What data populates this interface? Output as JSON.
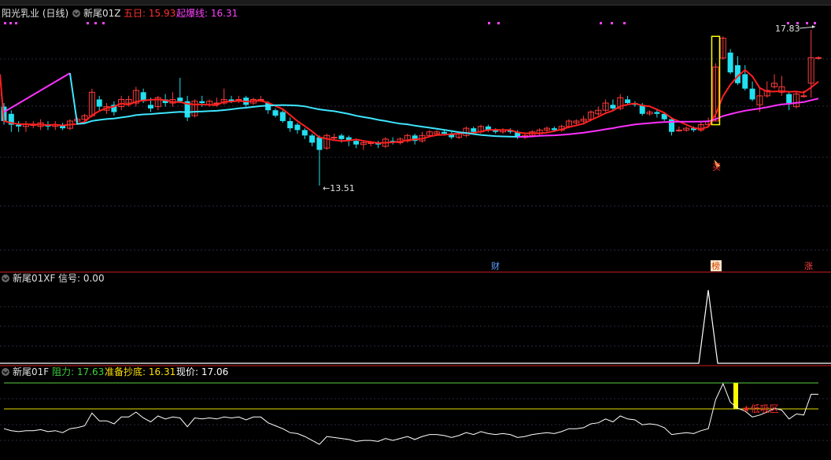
{
  "colors": {
    "background": "#000000",
    "divider": "#8a1414",
    "grid": "#2a2a40",
    "up_candle": "#ff3b3b",
    "down_candle": "#22e0f0",
    "ma_red": "#ff2020",
    "ma_cyan": "#3ee6ff",
    "ma_magenta": "#ff30ff",
    "signal_line": "#ffffff",
    "resist_line": "#5cd040",
    "support_line": "#e8e000",
    "marker_yellow": "#ffff00",
    "label_gray": "#e0e0e0",
    "label_red": "#ff3030",
    "label_magenta": "#ff40ff",
    "label_green": "#40d040",
    "label_yellow": "#ffe000",
    "label_white": "#ffffff"
  },
  "panel_main": {
    "stock_name": "阳光乳业 (日线)",
    "indicator_name": "新尾01Z",
    "line1_label": "五日: 15.93",
    "line2_label": "起爆线: 16.31",
    "high_label": "17.83",
    "low_label": "←13.51",
    "marker_cai": "财",
    "marker_bang": "榜",
    "marker_zhang": "涨",
    "buy_label": "买",
    "icons": [
      "collapse-icon",
      "collapse-icon"
    ]
  },
  "panel_mid": {
    "indicator_name": "新尾01XF",
    "signal_label": "信号: 0.00"
  },
  "panel_bot": {
    "indicator_name": "新尾01F",
    "resist_label": "阻力: 17.63",
    "support_label": "准备抄底: 16.31",
    "price_label": "现价: 17.06",
    "zone_label": "★低吸区"
  },
  "chart_data": {
    "type": "candlestick",
    "title": "阳光乳业 (日线)",
    "price_range": [
      13.2,
      18.2
    ],
    "high": 17.83,
    "low": 13.51,
    "ma5_last": 15.93,
    "trigger_line": 16.31,
    "candles": [
      [
        15.7,
        15.3,
        15.8,
        15.2
      ],
      [
        15.5,
        15.2,
        15.6,
        15.0
      ],
      [
        15.2,
        15.15,
        15.3,
        15.0
      ],
      [
        15.15,
        15.2,
        15.3,
        15.0
      ],
      [
        15.2,
        15.2,
        15.3,
        15.1
      ],
      [
        15.15,
        15.25,
        15.35,
        15.05
      ],
      [
        15.2,
        15.15,
        15.3,
        15.05
      ],
      [
        15.15,
        15.2,
        15.3,
        15.05
      ],
      [
        15.2,
        15.1,
        15.25,
        15.05
      ],
      [
        15.1,
        15.3,
        15.35,
        15.05
      ],
      [
        15.3,
        15.35,
        15.4,
        15.2
      ],
      [
        15.35,
        15.45,
        15.5,
        15.3
      ],
      [
        15.45,
        16.1,
        16.2,
        15.4
      ],
      [
        15.9,
        15.7,
        16.0,
        15.6
      ],
      [
        15.6,
        15.7,
        15.8,
        15.5
      ],
      [
        15.75,
        15.55,
        15.85,
        15.45
      ],
      [
        15.7,
        15.9,
        16.0,
        15.6
      ],
      [
        15.8,
        15.9,
        16.0,
        15.7
      ],
      [
        15.8,
        16.15,
        16.25,
        15.7
      ],
      [
        16.1,
        15.85,
        16.2,
        15.8
      ],
      [
        15.75,
        15.65,
        15.95,
        15.55
      ],
      [
        15.7,
        15.95,
        16.0,
        15.6
      ],
      [
        15.9,
        15.8,
        16.05,
        15.7
      ],
      [
        15.8,
        15.9,
        16.1,
        15.7
      ],
      [
        15.95,
        15.85,
        16.5,
        15.8
      ],
      [
        15.85,
        15.4,
        16.0,
        15.3
      ],
      [
        15.45,
        15.85,
        15.9,
        15.4
      ],
      [
        15.85,
        15.8,
        16.0,
        15.7
      ],
      [
        15.75,
        15.85,
        15.9,
        15.7
      ],
      [
        15.8,
        15.8,
        15.95,
        15.7
      ],
      [
        15.8,
        15.9,
        16.2,
        15.75
      ],
      [
        15.9,
        15.85,
        16.0,
        15.8
      ],
      [
        15.9,
        15.9,
        16.0,
        15.8
      ],
      [
        15.95,
        15.75,
        16.0,
        15.7
      ],
      [
        15.8,
        15.9,
        15.95,
        15.75
      ],
      [
        15.9,
        15.9,
        16.0,
        15.85
      ],
      [
        15.8,
        15.6,
        15.85,
        15.5
      ],
      [
        15.6,
        15.45,
        15.65,
        15.4
      ],
      [
        15.55,
        15.3,
        15.6,
        15.25
      ],
      [
        15.3,
        15.1,
        15.4,
        15.0
      ],
      [
        15.2,
        15.05,
        15.25,
        14.95
      ],
      [
        15.05,
        14.9,
        15.1,
        14.8
      ],
      [
        14.9,
        14.7,
        14.95,
        14.6
      ],
      [
        14.85,
        14.5,
        14.9,
        13.51
      ],
      [
        14.55,
        14.9,
        14.95,
        14.5
      ],
      [
        14.85,
        14.85,
        14.95,
        14.75
      ],
      [
        14.9,
        14.8,
        14.95,
        14.7
      ],
      [
        14.85,
        14.75,
        14.9,
        14.6
      ],
      [
        14.75,
        14.65,
        14.8,
        14.55
      ],
      [
        14.65,
        14.7,
        14.75,
        14.5
      ],
      [
        14.7,
        14.7,
        14.75,
        14.6
      ],
      [
        14.7,
        14.65,
        14.75,
        14.55
      ],
      [
        14.6,
        14.8,
        14.85,
        14.55
      ],
      [
        14.75,
        14.7,
        14.85,
        14.65
      ],
      [
        14.7,
        14.8,
        14.85,
        14.65
      ],
      [
        14.75,
        14.9,
        14.95,
        14.7
      ],
      [
        14.9,
        14.75,
        14.95,
        14.65
      ],
      [
        14.75,
        14.9,
        15.0,
        14.7
      ],
      [
        14.9,
        15.0,
        15.05,
        14.85
      ],
      [
        14.95,
        15.0,
        15.05,
        14.9
      ],
      [
        15.0,
        14.95,
        15.05,
        14.9
      ],
      [
        14.95,
        14.85,
        15.0,
        14.8
      ],
      [
        14.85,
        14.95,
        15.0,
        14.8
      ],
      [
        14.9,
        15.1,
        15.15,
        14.85
      ],
      [
        15.1,
        15.0,
        15.15,
        14.95
      ],
      [
        15.0,
        15.15,
        15.2,
        14.95
      ],
      [
        15.15,
        15.05,
        15.2,
        15.0
      ],
      [
        15.05,
        15.0,
        15.1,
        14.95
      ],
      [
        15.0,
        15.05,
        15.1,
        14.95
      ],
      [
        15.05,
        15.0,
        15.1,
        14.95
      ],
      [
        15.0,
        14.85,
        15.05,
        14.8
      ],
      [
        14.85,
        14.9,
        14.95,
        14.8
      ],
      [
        14.9,
        15.0,
        15.05,
        14.85
      ],
      [
        14.95,
        15.05,
        15.1,
        14.9
      ],
      [
        15.05,
        15.1,
        15.15,
        15.0
      ],
      [
        15.1,
        15.05,
        15.15,
        15.0
      ],
      [
        15.05,
        15.15,
        15.2,
        15.0
      ],
      [
        15.15,
        15.3,
        15.35,
        15.1
      ],
      [
        15.25,
        15.3,
        15.35,
        15.2
      ],
      [
        15.3,
        15.35,
        15.45,
        15.2
      ],
      [
        15.35,
        15.55,
        15.6,
        15.3
      ],
      [
        15.5,
        15.6,
        15.7,
        15.45
      ],
      [
        15.6,
        15.8,
        15.9,
        15.55
      ],
      [
        15.75,
        15.65,
        15.9,
        15.6
      ],
      [
        15.65,
        15.95,
        16.05,
        15.6
      ],
      [
        15.9,
        15.8,
        16.0,
        15.75
      ],
      [
        15.8,
        15.75,
        15.85,
        15.7
      ],
      [
        15.75,
        15.5,
        15.8,
        15.45
      ],
      [
        15.5,
        15.55,
        15.6,
        15.45
      ],
      [
        15.55,
        15.5,
        15.65,
        15.4
      ],
      [
        15.5,
        15.35,
        15.55,
        15.3
      ],
      [
        15.35,
        15.0,
        15.4,
        14.9
      ],
      [
        15.05,
        15.05,
        15.15,
        15.0
      ],
      [
        15.05,
        15.1,
        15.15,
        15.0
      ],
      [
        15.1,
        15.05,
        15.15,
        15.0
      ],
      [
        15.05,
        15.2,
        15.3,
        15.0
      ],
      [
        15.2,
        15.3,
        15.4,
        15.15
      ],
      [
        15.3,
        16.8,
        16.9,
        15.3
      ],
      [
        17.05,
        17.6,
        17.65,
        17.0
      ],
      [
        17.2,
        16.65,
        17.3,
        16.6
      ],
      [
        16.85,
        16.35,
        17.1,
        16.3
      ],
      [
        16.6,
        16.2,
        16.85,
        16.15
      ],
      [
        16.2,
        15.9,
        16.4,
        15.85
      ],
      [
        15.75,
        16.0,
        16.2,
        15.55
      ],
      [
        16.0,
        16.15,
        16.4,
        15.95
      ],
      [
        16.25,
        16.35,
        16.6,
        16.2
      ],
      [
        16.1,
        16.25,
        16.55,
        16.0
      ],
      [
        16.05,
        15.8,
        16.1,
        15.6
      ],
      [
        15.7,
        16.05,
        16.1,
        15.65
      ],
      [
        16.0,
        16.0,
        16.15,
        15.95
      ],
      [
        16.35,
        17.06,
        17.83,
        15.95
      ],
      [
        17.06,
        17.06,
        17.1,
        17.0
      ]
    ],
    "ma5_tail": 15.93
  }
}
